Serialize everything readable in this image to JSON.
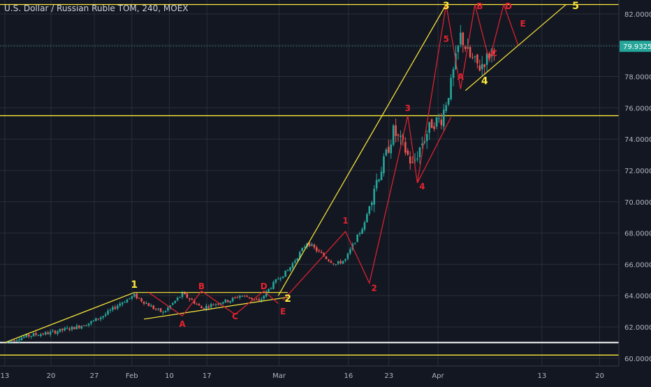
{
  "header": {
    "title": "U.S. Dollar / Russian Ruble TOM, 240, MOEX"
  },
  "colors": {
    "background": "#131722",
    "grid": "#2a2e39",
    "axis_text": "#b2b5be",
    "bull": "#26a69a",
    "bear": "#ef5350",
    "wave_yellow": "#ffeb3b",
    "wave_red": "#e6232f",
    "price_tag": "#26a69a",
    "white_line": "#ffffff"
  },
  "chart_data": {
    "type": "candlestick",
    "title": "U.S. Dollar / Russian Ruble TOM, 240, MOEX",
    "x_ticks": [
      "13",
      "20",
      "27",
      "Feb",
      "10",
      "17",
      "Mar",
      "16",
      "23",
      "Apr",
      "13",
      "20"
    ],
    "y_ticks": [
      "60.0000",
      "62.0000",
      "64.0000",
      "66.0000",
      "68.0000",
      "70.0000",
      "72.0000",
      "74.0000",
      "76.0000",
      "78.0000",
      "80.0000",
      "82.0000"
    ],
    "ylim": [
      59.5,
      82.8
    ],
    "grid": true,
    "last_price": "79.9325",
    "horizontal_levels": [
      {
        "name": "resistance-82.6",
        "value": 82.6,
        "color": "yellow"
      },
      {
        "name": "support-75.5",
        "value": 75.5,
        "color": "yellow"
      },
      {
        "name": "support-61.0",
        "value": 61.0,
        "color": "white"
      },
      {
        "name": "support-60.2",
        "value": 60.2,
        "color": "yellow"
      }
    ],
    "price_path": [
      [
        0,
        61.0
      ],
      [
        3,
        61.3
      ],
      [
        6,
        61.5
      ],
      [
        9,
        61.6
      ],
      [
        12,
        61.8
      ],
      [
        15,
        62.0
      ],
      [
        18,
        62.3
      ],
      [
        21,
        62.8
      ],
      [
        24,
        63.5
      ],
      [
        27,
        64.0
      ],
      [
        29,
        63.6
      ],
      [
        31,
        63.2
      ],
      [
        33,
        62.9
      ],
      [
        35,
        63.5
      ],
      [
        37,
        64.1
      ],
      [
        39,
        63.7
      ],
      [
        41,
        63.2
      ],
      [
        43,
        63.4
      ],
      [
        45,
        63.6
      ],
      [
        47,
        63.7
      ],
      [
        49,
        64.0
      ],
      [
        51,
        63.9
      ],
      [
        53,
        63.6
      ],
      [
        55,
        64.4
      ],
      [
        57,
        65.1
      ],
      [
        59,
        65.6
      ],
      [
        61,
        66.5
      ],
      [
        63,
        67.4
      ],
      [
        65,
        66.9
      ],
      [
        67,
        66.4
      ],
      [
        69,
        66.0
      ],
      [
        71,
        66.3
      ],
      [
        73,
        67.5
      ],
      [
        75,
        68.6
      ],
      [
        77,
        71.0
      ],
      [
        79,
        72.5
      ],
      [
        81,
        74.5
      ],
      [
        83,
        73.6
      ],
      [
        85,
        72.3
      ],
      [
        87,
        73.8
      ],
      [
        89,
        75.0
      ],
      [
        91,
        75.3
      ],
      [
        93,
        77.5
      ],
      [
        95,
        80.6
      ],
      [
        97,
        79.2
      ],
      [
        99,
        78.6
      ],
      [
        101,
        79.4
      ],
      [
        102,
        79.9
      ]
    ],
    "labels": [
      {
        "text": "1",
        "color": "yellow",
        "x": 27,
        "y": 64.5
      },
      {
        "text": "2",
        "color": "yellow",
        "x": 59,
        "y": 63.6
      },
      {
        "text": "3",
        "color": "yellow",
        "x": 92,
        "y": 82.3
      },
      {
        "text": "4",
        "color": "yellow",
        "x": 100,
        "y": 77.5
      },
      {
        "text": "5",
        "color": "yellow",
        "x": 119,
        "y": 82.3
      },
      {
        "text": "B",
        "color": "red",
        "x": 41,
        "y": 64.4
      },
      {
        "text": "D",
        "color": "red",
        "x": 54,
        "y": 64.4
      },
      {
        "text": "A",
        "color": "red",
        "x": 37,
        "y": 62.0
      },
      {
        "text": "C",
        "color": "red",
        "x": 48,
        "y": 62.5
      },
      {
        "text": "E",
        "color": "red",
        "x": 58,
        "y": 62.8
      },
      {
        "text": "1",
        "color": "red",
        "x": 71,
        "y": 68.6
      },
      {
        "text": "2",
        "color": "red",
        "x": 77,
        "y": 64.3
      },
      {
        "text": "3",
        "color": "red",
        "x": 84,
        "y": 75.8
      },
      {
        "text": "4",
        "color": "red",
        "x": 87,
        "y": 70.8
      },
      {
        "text": "5",
        "color": "red",
        "x": 92,
        "y": 80.2
      },
      {
        "text": "A",
        "color": "red",
        "x": 95,
        "y": 77.8
      },
      {
        "text": "B",
        "color": "red",
        "x": 99,
        "y": 82.3
      },
      {
        "text": "C",
        "color": "red",
        "x": 102,
        "y": 79.3
      },
      {
        "text": "D",
        "color": "red",
        "x": 105,
        "y": 82.3
      },
      {
        "text": "E",
        "color": "red",
        "x": 108,
        "y": 81.2
      }
    ]
  }
}
